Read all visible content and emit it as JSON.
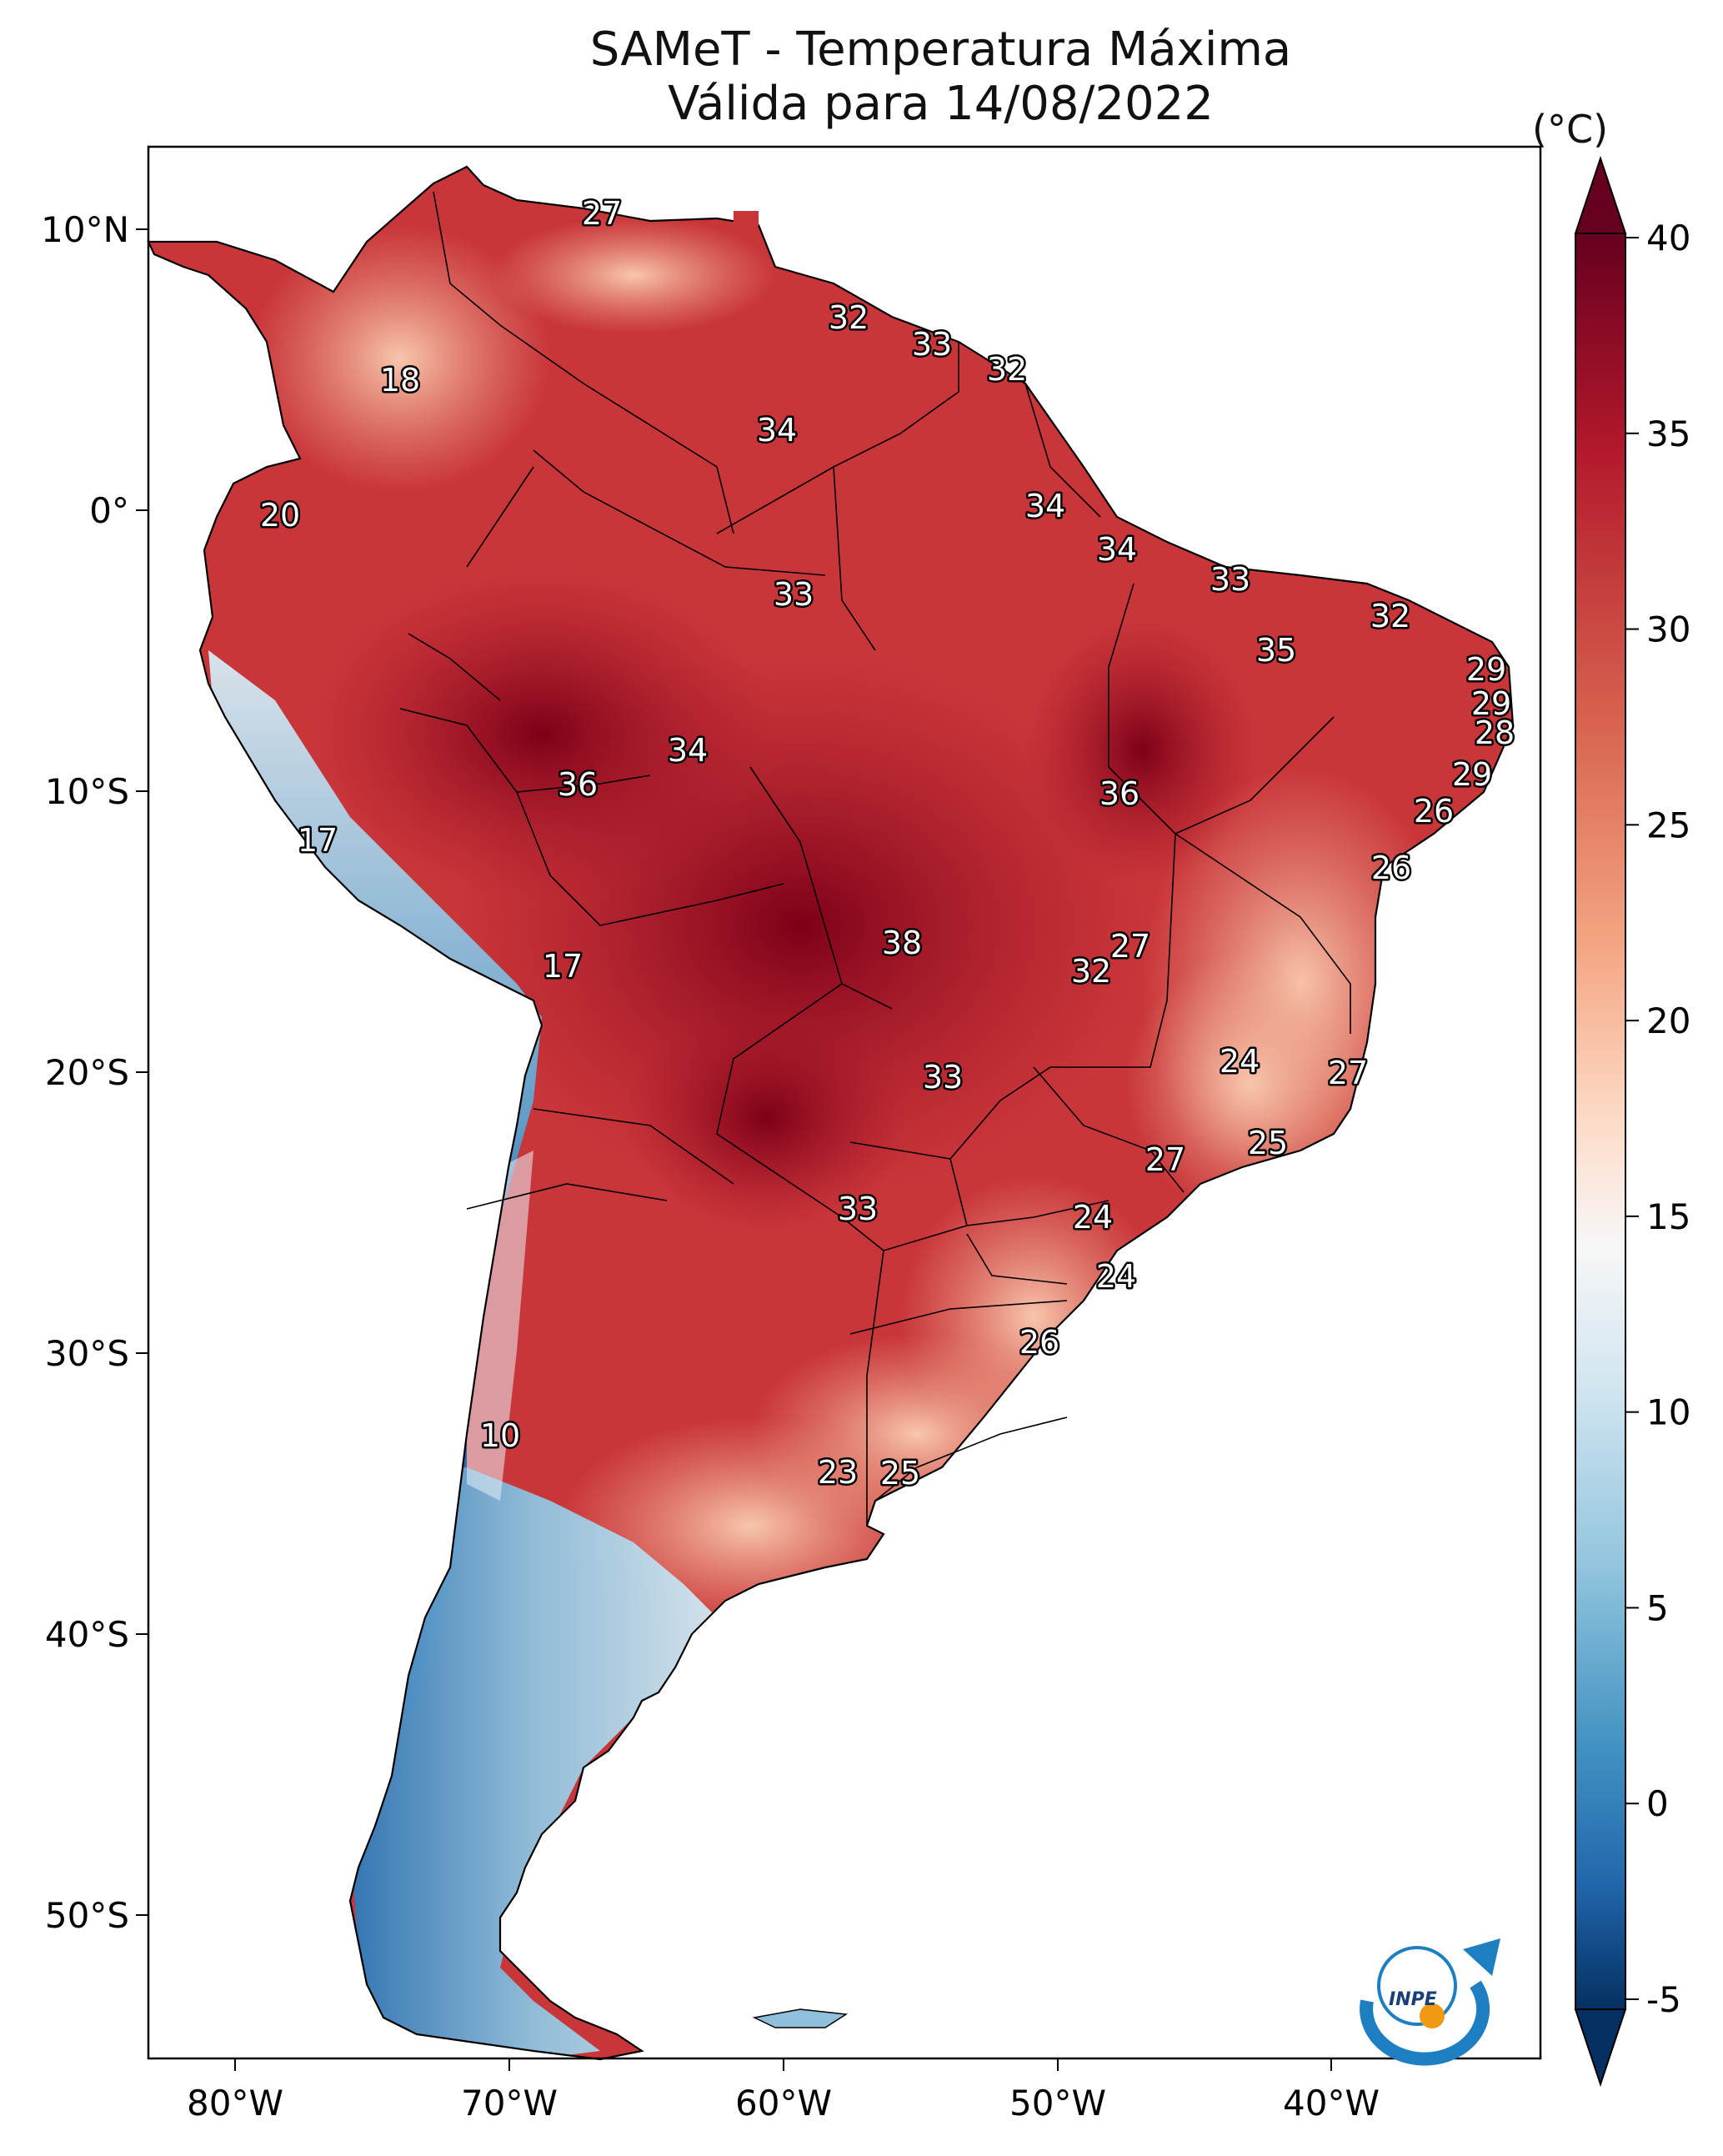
{
  "title": {
    "line1": "SAMeT - Temperatura Máxima",
    "line2": "Válida para 14/08/2022"
  },
  "colorbar": {
    "unit": "(°C)",
    "ticks": [
      "40",
      "35",
      "30",
      "25",
      "20",
      "15",
      "10",
      "5",
      "0",
      "-5"
    ]
  },
  "axes": {
    "lon_labels": [
      "80°W",
      "70°W",
      "60°W",
      "50°W",
      "40°W"
    ],
    "lat_labels": [
      "10°N",
      "0°",
      "10°S",
      "20°S",
      "30°S",
      "40°S",
      "50°S"
    ]
  },
  "colors": {
    "hot": "#8b0a1e",
    "warm": "#c8383a",
    "mild": "#f4a582",
    "neutral": "#f7f7f7",
    "cool": "#92c5de",
    "cold": "#2166ac",
    "cold_extreme": "#053061"
  },
  "logo": {
    "text": "INPE"
  },
  "point_labels": [
    {
      "text": "27"
    },
    {
      "text": "18"
    },
    {
      "text": "32"
    },
    {
      "text": "33"
    },
    {
      "text": "32"
    },
    {
      "text": "34"
    },
    {
      "text": "20"
    },
    {
      "text": "34"
    },
    {
      "text": "34"
    },
    {
      "text": "33"
    },
    {
      "text": "33"
    },
    {
      "text": "32"
    },
    {
      "text": "35"
    },
    {
      "text": "29"
    },
    {
      "text": "29"
    },
    {
      "text": "28"
    },
    {
      "text": "34"
    },
    {
      "text": "36"
    },
    {
      "text": "36"
    },
    {
      "text": "29"
    },
    {
      "text": "17"
    },
    {
      "text": "26"
    },
    {
      "text": "26"
    },
    {
      "text": "38"
    },
    {
      "text": "27"
    },
    {
      "text": "17"
    },
    {
      "text": "32"
    },
    {
      "text": "24"
    },
    {
      "text": "27"
    },
    {
      "text": "33"
    },
    {
      "text": "25"
    },
    {
      "text": "27"
    },
    {
      "text": "33"
    },
    {
      "text": "24"
    },
    {
      "text": "24"
    },
    {
      "text": "26"
    },
    {
      "text": "10"
    },
    {
      "text": "23"
    },
    {
      "text": "25"
    }
  ]
}
